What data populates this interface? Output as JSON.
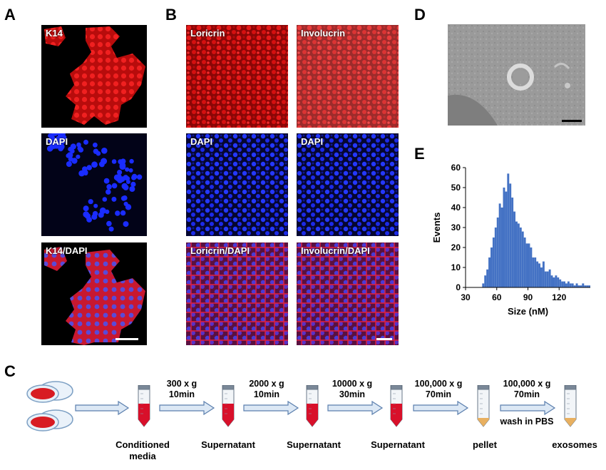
{
  "panels": {
    "A": {
      "letter": "A",
      "labels": [
        "K14",
        "DAPI",
        "K14/DAPI"
      ]
    },
    "B": {
      "letter": "B",
      "labels": [
        "Loricrin",
        "Involucrin",
        "DAPI",
        "DAPI",
        "Loricrin/DAPI",
        "Involucrin/DAPI"
      ]
    },
    "C": {
      "letter": "C"
    },
    "D": {
      "letter": "D"
    },
    "E": {
      "letter": "E"
    }
  },
  "workflow": {
    "steps": [
      {
        "line1": "300 x g",
        "line2": "10min"
      },
      {
        "line1": "2000 x g",
        "line2": "10min"
      },
      {
        "line1": "10000 x g",
        "line2": "30min"
      },
      {
        "line1": "100,000 x g",
        "line2": "70min"
      },
      {
        "line1": "100,000 x g",
        "line2": "70min",
        "note": "wash in PBS"
      }
    ],
    "tubes": [
      {
        "caption_line1": "Conditioned",
        "caption_line2": "media"
      },
      {
        "caption_line1": "Supernatant",
        "caption_line2": ""
      },
      {
        "caption_line1": "Supernatant",
        "caption_line2": ""
      },
      {
        "caption_line1": "Supernatant",
        "caption_line2": ""
      },
      {
        "caption_line1": "pellet",
        "caption_line2": ""
      },
      {
        "caption_line1": "exosomes",
        "caption_line2": ""
      }
    ]
  },
  "colors": {
    "red_stain": "#e01010",
    "blue_stain": "#1a2cff",
    "histogram_bar": "#4472c4",
    "arrow_fill": "#dce8f5",
    "arrow_stroke": "#5b7fae",
    "tube_red": "#d8102a",
    "tube_pellet": "#e8b060"
  },
  "chart_data": {
    "type": "bar",
    "title": "",
    "xlabel": "Size (nM)",
    "ylabel": "Events",
    "xlim": [
      30,
      150
    ],
    "ylim": [
      0,
      60
    ],
    "xticks": [
      30,
      60,
      90,
      120
    ],
    "yticks": [
      0,
      10,
      20,
      30,
      40,
      50,
      60
    ],
    "bin_width": 2,
    "bins_start": [
      46,
      48,
      50,
      52,
      54,
      56,
      58,
      60,
      62,
      64,
      66,
      68,
      70,
      72,
      74,
      76,
      78,
      80,
      82,
      84,
      86,
      88,
      90,
      92,
      94,
      96,
      98,
      100,
      102,
      104,
      106,
      108,
      110,
      112,
      114,
      116,
      118,
      120,
      122,
      124,
      126,
      128,
      130,
      132,
      134,
      136,
      138,
      140,
      142,
      144,
      146,
      148
    ],
    "values": [
      2,
      6,
      9,
      15,
      20,
      25,
      30,
      35,
      42,
      40,
      50,
      48,
      57,
      52,
      45,
      38,
      33,
      32,
      30,
      28,
      25,
      22,
      22,
      20,
      15,
      15,
      13,
      12,
      10,
      13,
      8,
      8,
      9,
      6,
      5,
      6,
      5,
      4,
      3,
      3,
      2,
      3,
      2,
      2,
      1,
      2,
      1,
      1,
      2,
      1,
      1,
      1
    ]
  }
}
